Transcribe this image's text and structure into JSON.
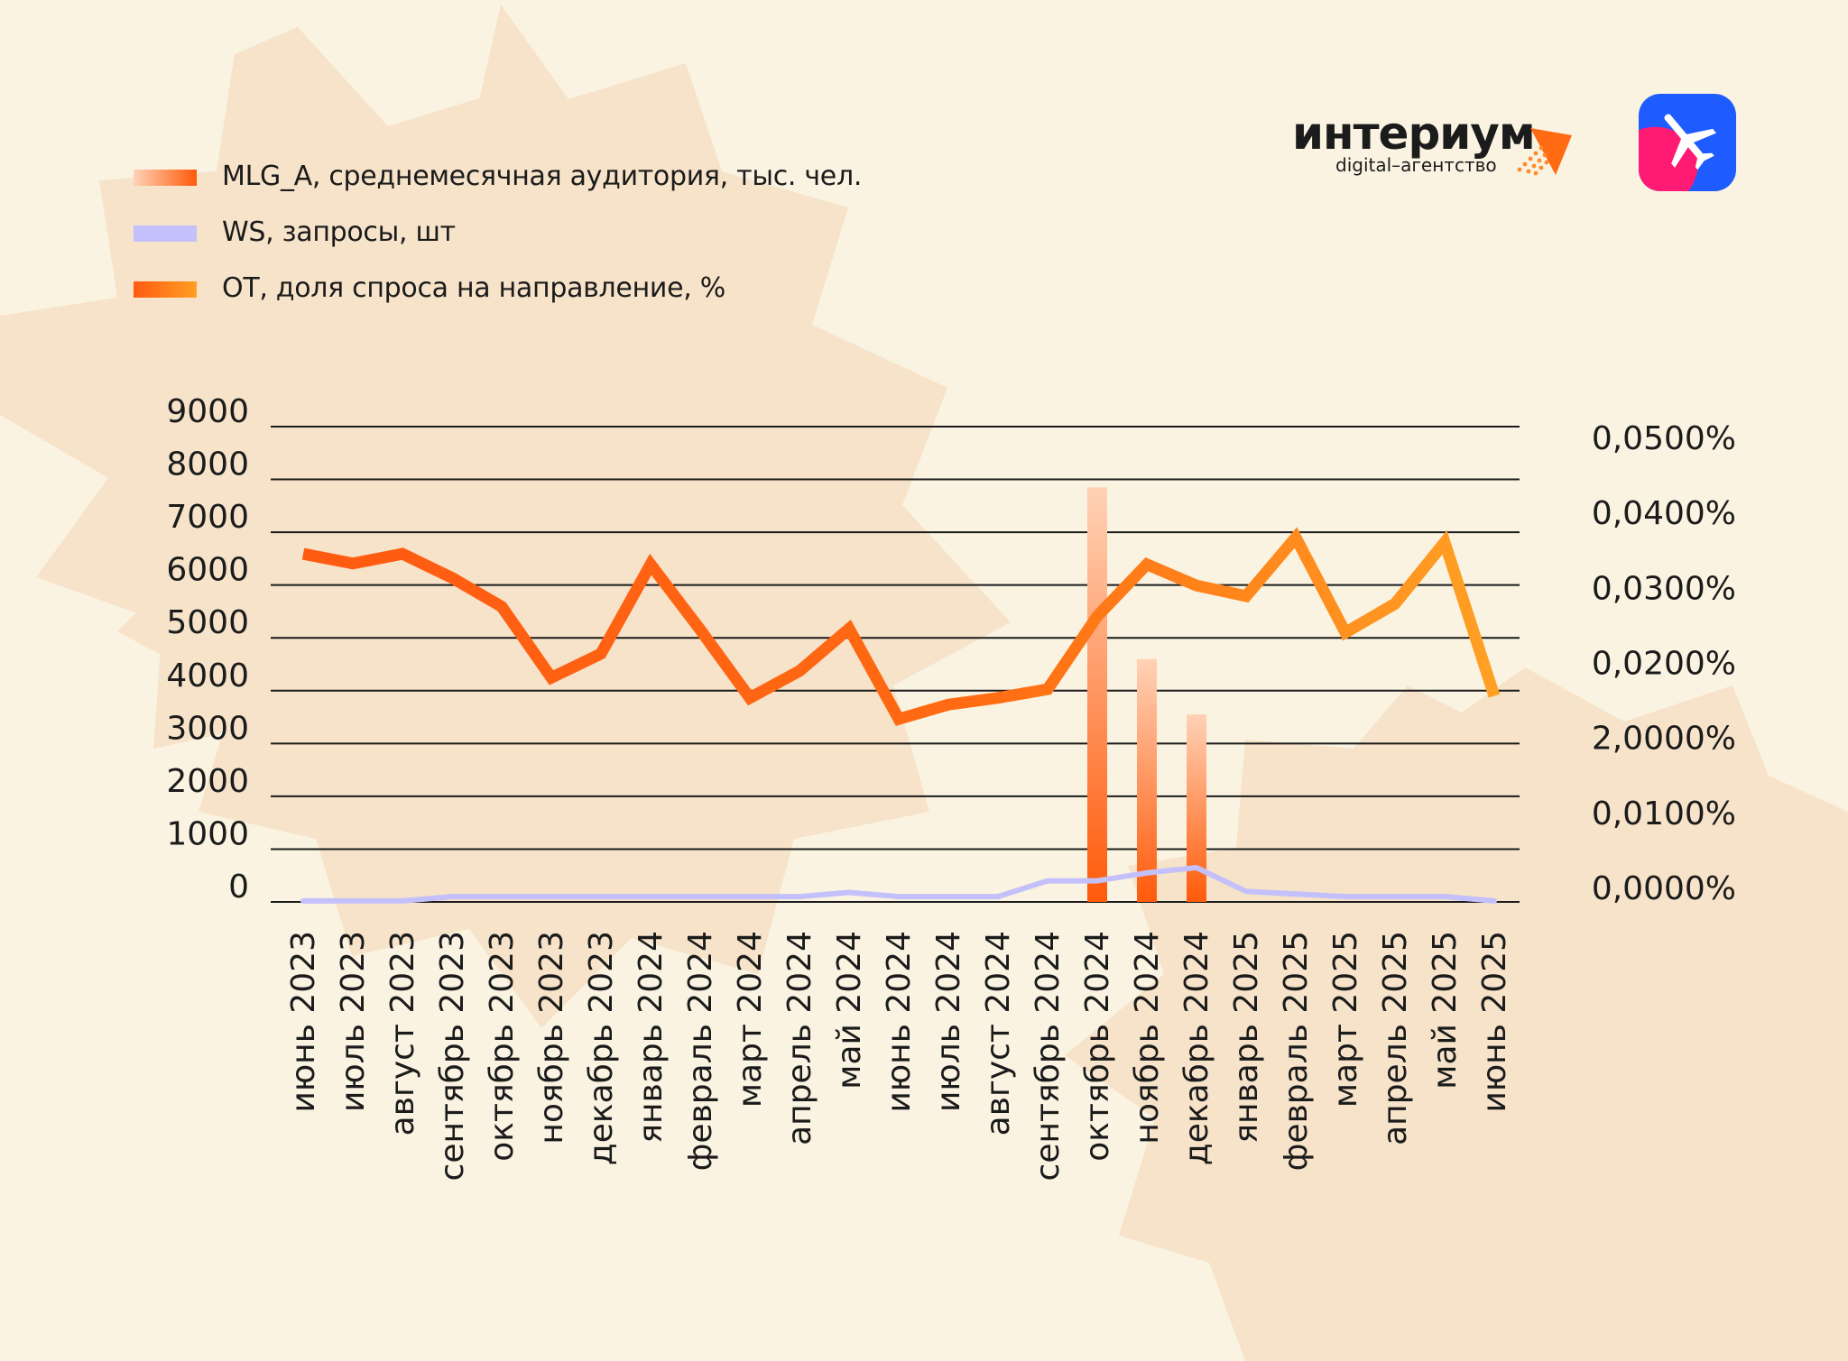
{
  "brand": {
    "name": "интериум",
    "tagline": "digital–агентство"
  },
  "legend": [
    {
      "label": "MLG_A, среднемесячная аудитория, тыс. чел.",
      "icon": "bar-swatch"
    },
    {
      "label": "WS, запросы, шт",
      "icon": "line-swatch"
    },
    {
      "label": "OT, доля спроса на направление, %",
      "icon": "line-swatch"
    }
  ],
  "app_icon": "airplane-icon",
  "colors": {
    "background": "#faf3e2",
    "blob": "#f6e3c9",
    "mlg_bar_top": "#ffc9a6",
    "mlg_bar_bottom": "#ff5a0a",
    "ws_line": "#c4c0fb",
    "ot_line_start": "#ff5a12",
    "ot_line_end": "#ff9f22",
    "gridline": "#1b1b1b",
    "app_blue": "#1f5cff",
    "app_pink": "#ff1a73"
  },
  "chart_data": {
    "type": "bar",
    "categories": [
      "июнь 2023",
      "июль 2023",
      "август 2023",
      "сентябрь 2023",
      "октябрь 2023",
      "ноябрь 2023",
      "декабрь 2023",
      "январь 2024",
      "февраль 2024",
      "март 2024",
      "апрель 2024",
      "май 2024",
      "июнь 2024",
      "июль 2024",
      "август 2024",
      "сентябрь 2024",
      "октябрь 2024",
      "ноябрь 2024",
      "декабрь 2024",
      "январь 2025",
      "февраль 2025",
      "март 2025",
      "апрель 2025",
      "май 2025",
      "июнь 2025"
    ],
    "y_ticks": [
      "9000",
      "8000",
      "7000",
      "6000",
      "5000",
      "4000",
      "3000",
      "2000",
      "1000",
      "0"
    ],
    "y_right_ticks": [
      "0,0500%",
      "0,0400%",
      "0,0300%",
      "0,0200%",
      "2,0000%",
      "0,0100%",
      "0,0000%"
    ],
    "ylim": [
      0,
      9000
    ],
    "grid": true,
    "legend_position": "top-left",
    "series": [
      {
        "name": "MLG_A, среднемесячная аудитория, тыс. чел.",
        "type": "bar",
        "axis": "left",
        "values": [
          null,
          null,
          null,
          null,
          null,
          null,
          null,
          null,
          null,
          null,
          null,
          null,
          null,
          null,
          null,
          null,
          7850,
          4600,
          3550,
          null,
          null,
          null,
          null,
          null,
          null
        ]
      },
      {
        "name": "WS, запросы, шт",
        "type": "line",
        "axis": "left",
        "values": [
          20,
          20,
          20,
          100,
          100,
          100,
          100,
          100,
          100,
          100,
          100,
          180,
          100,
          100,
          100,
          400,
          400,
          550,
          650,
          200,
          150,
          100,
          100,
          100,
          20
        ]
      },
      {
        "name": "OT, доля спроса на направление, %",
        "type": "line",
        "axis": "right",
        "values": [
          0.0356,
          0.0346,
          0.0356,
          0.0331,
          0.0301,
          0.0227,
          0.0252,
          0.0345,
          0.0277,
          0.0206,
          0.0234,
          0.0278,
          0.0184,
          0.0199,
          0.0206,
          0.0215,
          0.0291,
          0.0345,
          0.0323,
          0.0312,
          0.0373,
          0.0274,
          0.0304,
          0.0368,
          0.0208
        ]
      }
    ]
  }
}
